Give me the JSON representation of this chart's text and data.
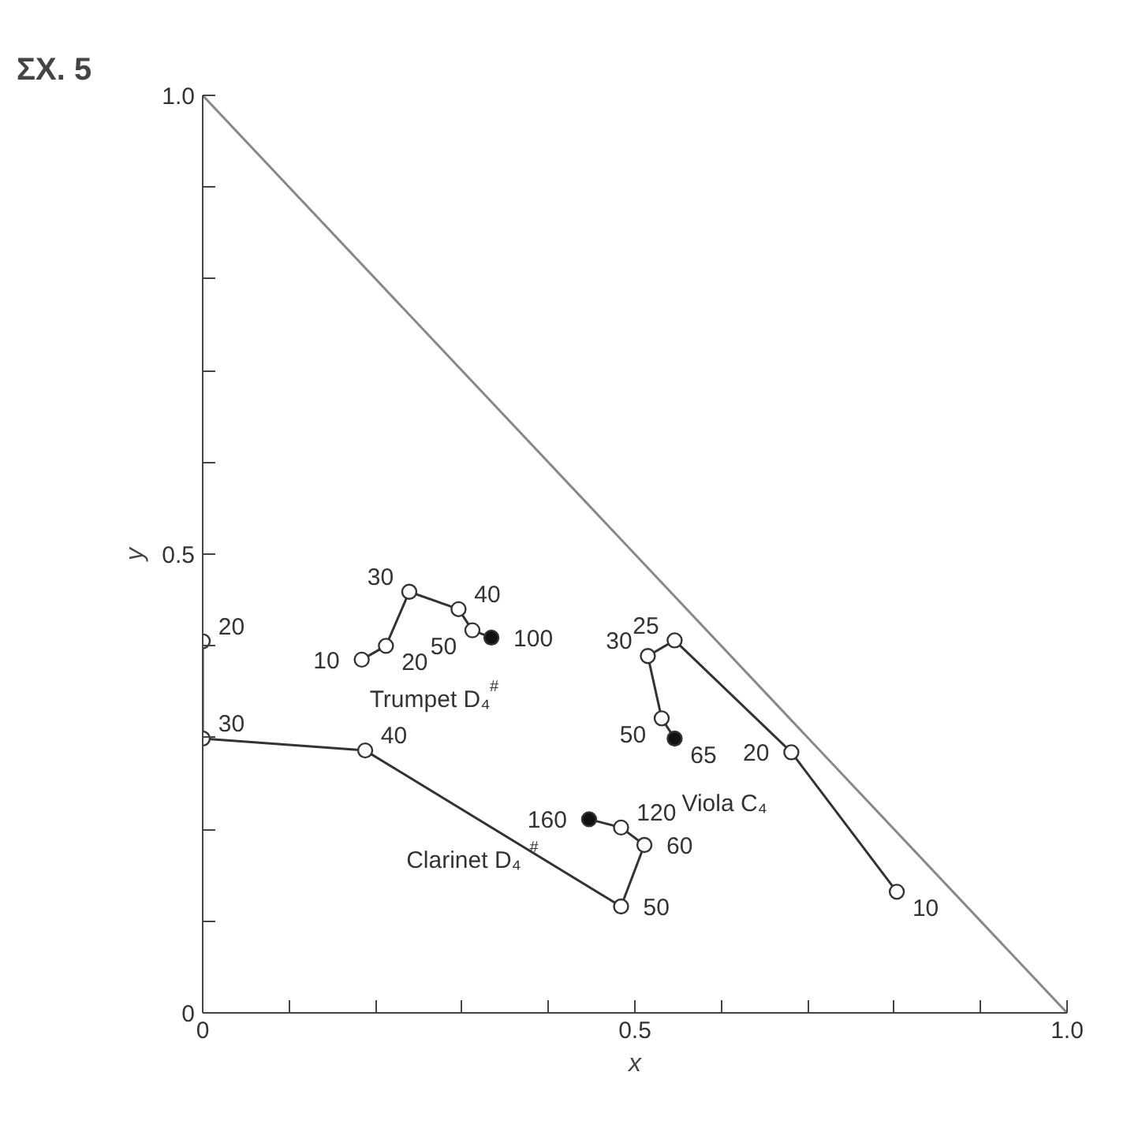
{
  "chart_data": {
    "type": "line",
    "title": "ΣX. 5",
    "xlabel": "x",
    "ylabel": "y",
    "xlim": [
      0,
      1.0
    ],
    "ylim": [
      0,
      1.0
    ],
    "xticks": [
      0,
      {
        "value": 0.1,
        "label": null
      },
      {
        "value": 0.2,
        "label": null
      },
      {
        "value": 0.3,
        "label": null
      },
      {
        "value": 0.4,
        "label": null
      },
      0.5,
      {
        "value": 0.6,
        "label": null
      },
      {
        "value": 0.7,
        "label": null
      },
      {
        "value": 0.8,
        "label": null
      },
      {
        "value": 0.9,
        "label": null
      },
      {
        "value": 1.0,
        "label": "1.0"
      }
    ],
    "yticks": [
      0,
      {
        "value": 0.1,
        "label": null
      },
      {
        "value": 0.2,
        "label": null
      },
      {
        "value": 0.3,
        "label": null
      },
      {
        "value": 0.4,
        "label": null
      },
      0.5,
      {
        "value": 0.6,
        "label": null
      },
      {
        "value": 0.7,
        "label": null
      },
      {
        "value": 0.8,
        "label": null
      },
      {
        "value": 0.9,
        "label": null
      },
      {
        "value": 1.0,
        "label": "1.0"
      }
    ],
    "grid": false,
    "marker": "circle",
    "line_style": "solid",
    "series": [
      {
        "name": "Trumpet D₄$^{#}$",
        "color": "#333333",
        "x": [
          0.184,
          0.212,
          0.239,
          0.296,
          0.312,
          0.334
        ],
        "values": [
          0.385,
          0.4,
          0.459,
          0.44,
          0.417,
          0.409
        ],
        "colors": [
          "#ffffff",
          "#ffffff",
          "#ffffff",
          "#ffffff",
          "#ffffff",
          "#111111"
        ]
      },
      {
        "name": "Clarinet D₄$^{#}$",
        "color": "#333333",
        "x": [
          0,
          0,
          0.188,
          0.484,
          0.511,
          0.484,
          0.447
        ],
        "values": [
          0.405,
          0.299,
          0.286,
          0.116,
          0.183,
          0.202,
          0.211
        ],
        "colors": [
          "#ffffff",
          "#ffffff",
          "#ffffff",
          "#ffffff",
          "#ffffff",
          "#ffffff",
          "#111111"
        ]
      },
      {
        "name": "Viola C₄",
        "color": "#333333",
        "x": [
          0.803,
          0.681,
          0.546,
          0.515,
          0.531,
          0.546
        ],
        "values": [
          0.132,
          0.284,
          0.406,
          0.389,
          0.321,
          0.299
        ],
        "colors": [
          "#ffffff",
          "#ffffff",
          "#ffffff",
          "#ffffff",
          "#ffffff",
          "#111111"
        ]
      },
      {
        "color": "#888888",
        "x": [
          0,
          1.0
        ],
        "values": [
          1.0,
          0
        ],
        "marker": "none"
      }
    ],
    "annotations": [
      {
        "text": "10",
        "x": 0.184,
        "y": 0.385
      },
      {
        "text": "20",
        "x": 0.212,
        "y": 0.4
      },
      {
        "text": "30",
        "x": 0.239,
        "y": 0.459
      },
      {
        "text": "40",
        "x": 0.296,
        "y": 0.44
      },
      {
        "text": "50",
        "x": 0.312,
        "y": 0.417
      },
      {
        "text": "100",
        "x": 0.334,
        "y": 0.409
      },
      {
        "text": "20",
        "x": 0,
        "y": 0.405
      },
      {
        "text": "30",
        "x": 0,
        "y": 0.299
      },
      {
        "text": "40",
        "x": 0.188,
        "y": 0.286
      },
      {
        "text": "50",
        "x": 0.484,
        "y": 0.116
      },
      {
        "text": "60",
        "x": 0.511,
        "y": 0.183
      },
      {
        "text": "120",
        "x": 0.484,
        "y": 0.202
      },
      {
        "text": "160",
        "x": 0.447,
        "y": 0.211
      },
      {
        "text": "10",
        "x": 0.803,
        "y": 0.132
      },
      {
        "text": "20",
        "x": 0.681,
        "y": 0.284
      },
      {
        "text": "25",
        "x": 0.546,
        "y": 0.406
      },
      {
        "text": "30",
        "x": 0.515,
        "y": 0.389
      },
      {
        "text": "50",
        "x": 0.531,
        "y": 0.321
      },
      {
        "text": "65",
        "x": 0.546,
        "y": 0.299
      }
    ]
  }
}
